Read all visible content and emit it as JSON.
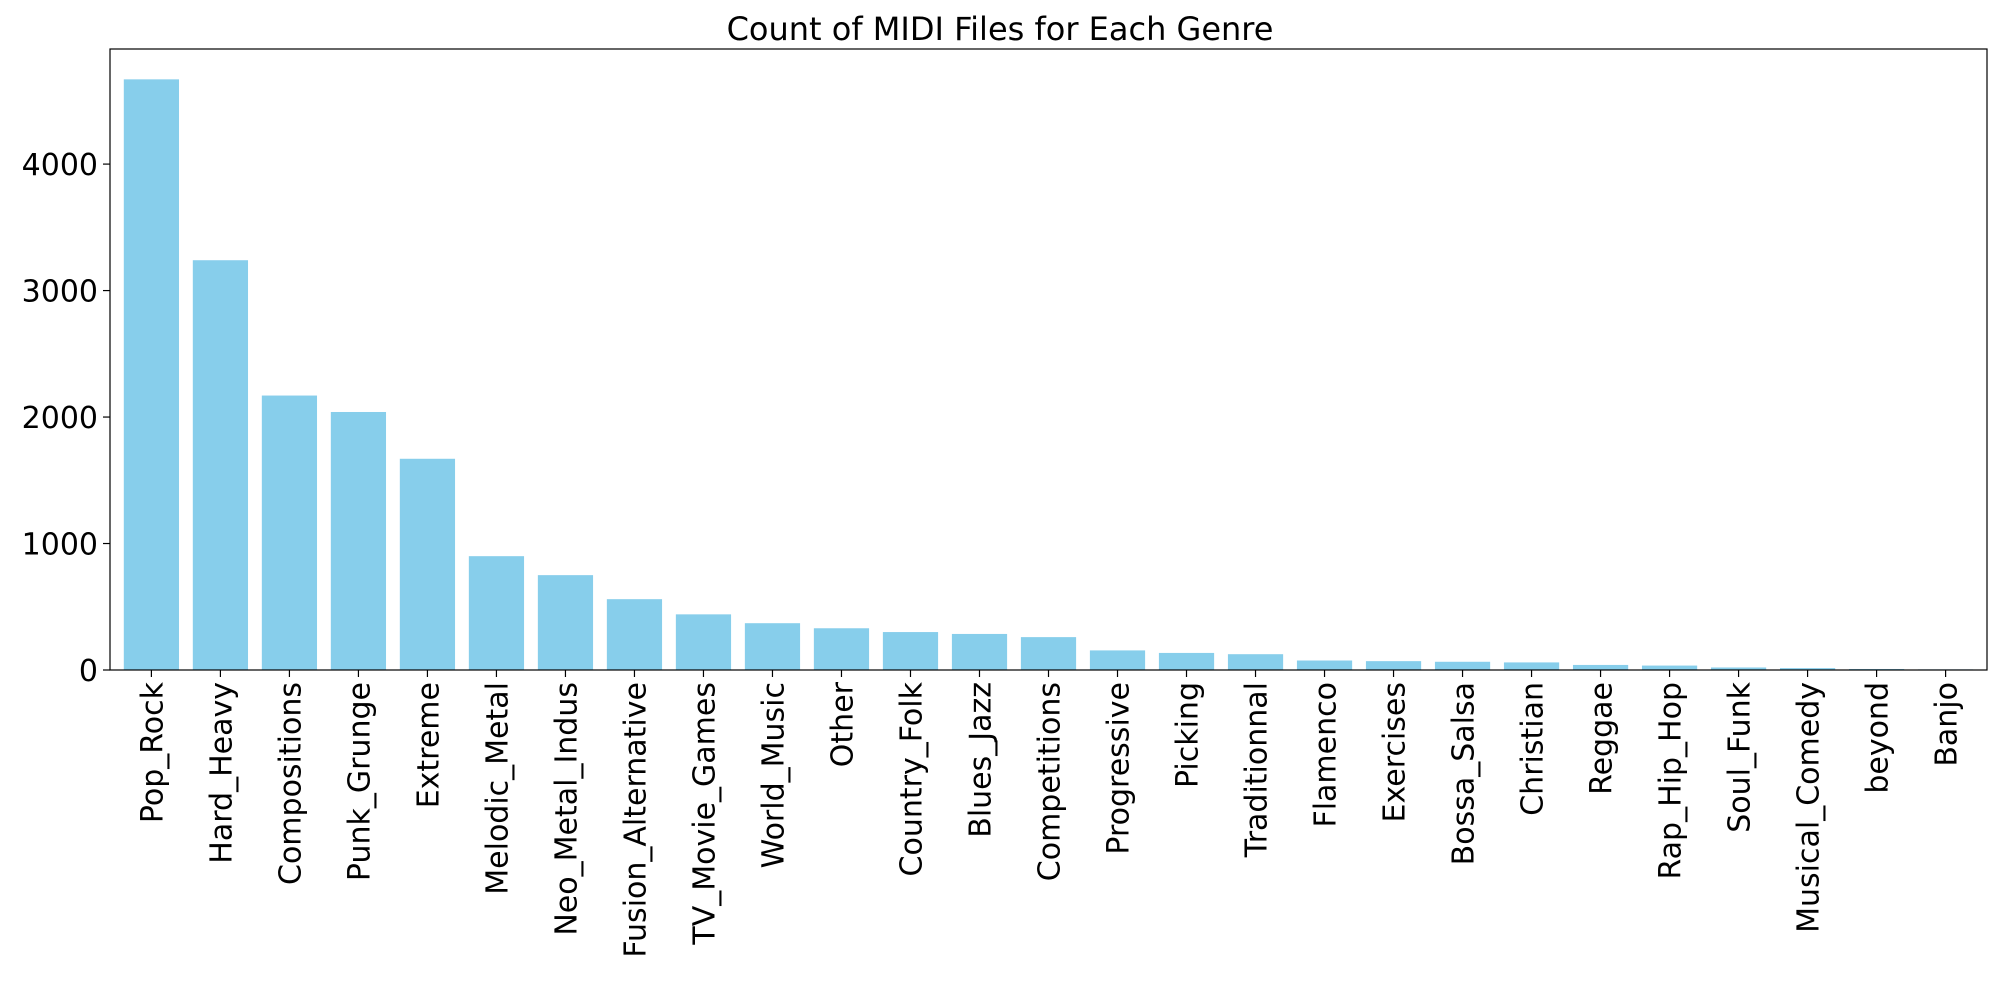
{
  "chart_data": {
    "type": "bar",
    "title": "Count of MIDI Files for Each Genre",
    "xlabel": "",
    "ylabel": "",
    "categories": [
      "Pop_Rock",
      "Hard_Heavy",
      "Compositions",
      "Punk_Grunge",
      "Extreme",
      "Melodic_Metal",
      "Neo_Metal_Indus",
      "Fusion_Alternative",
      "TV_Movie_Games",
      "World_Music",
      "Other",
      "Country_Folk",
      "Blues_Jazz",
      "Competitions",
      "Progressive",
      "Picking",
      "Traditionnal",
      "Flamenco",
      "Exercises",
      "Bossa_Salsa",
      "Christian",
      "Reggae",
      "Rap_Hip_Hop",
      "Soul_Funk",
      "Musical_Comedy",
      "beyond",
      "Banjo"
    ],
    "values": [
      4670,
      3240,
      2170,
      2040,
      1670,
      900,
      750,
      560,
      440,
      370,
      330,
      300,
      285,
      260,
      155,
      135,
      125,
      75,
      70,
      65,
      60,
      40,
      35,
      20,
      15,
      8,
      5
    ],
    "ylim": [
      0,
      4910
    ],
    "yticks": [
      0,
      1000,
      2000,
      3000,
      4000
    ],
    "grid": false,
    "legend": "none",
    "bar_color": "#87CEEB"
  }
}
